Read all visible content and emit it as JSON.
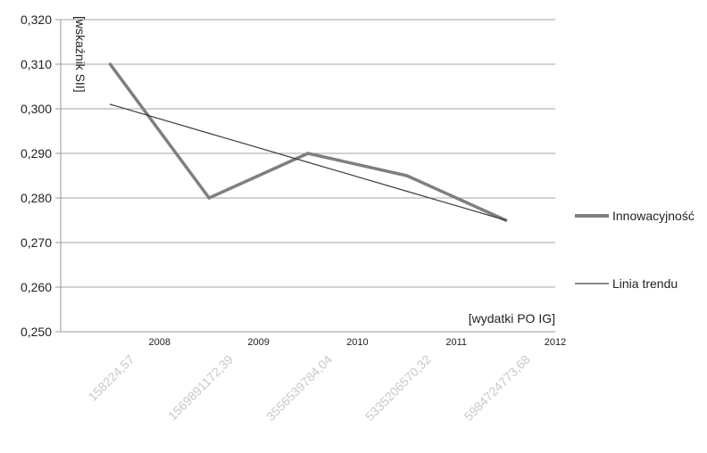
{
  "chart_data": {
    "type": "line",
    "title": "",
    "ylabel": "[wskaźnik SII]",
    "xlabel": "[wydatki PO IG]",
    "ylim": [
      0.25,
      0.32
    ],
    "yticks": [
      "0,320",
      "0,310",
      "0,300",
      "0,290",
      "0,280",
      "0,270",
      "0,260",
      "0,250"
    ],
    "xticks": [
      "2008",
      "2009",
      "2010",
      "2011",
      "2012"
    ],
    "categories": [
      "158224,57",
      "1569891172,39",
      "3556539784,04",
      "5335206570,32",
      "5984724773,68"
    ],
    "grid": "horizontal",
    "legend_position": "right",
    "series": [
      {
        "name": "Innowacyjność",
        "values": [
          0.31,
          0.28,
          0.29,
          0.285,
          0.275
        ],
        "color": "#7f7f7f"
      },
      {
        "name": "Linia trendu",
        "values": [
          0.301,
          0.2945,
          0.288,
          0.2815,
          0.275
        ],
        "color": "#404040"
      }
    ]
  }
}
